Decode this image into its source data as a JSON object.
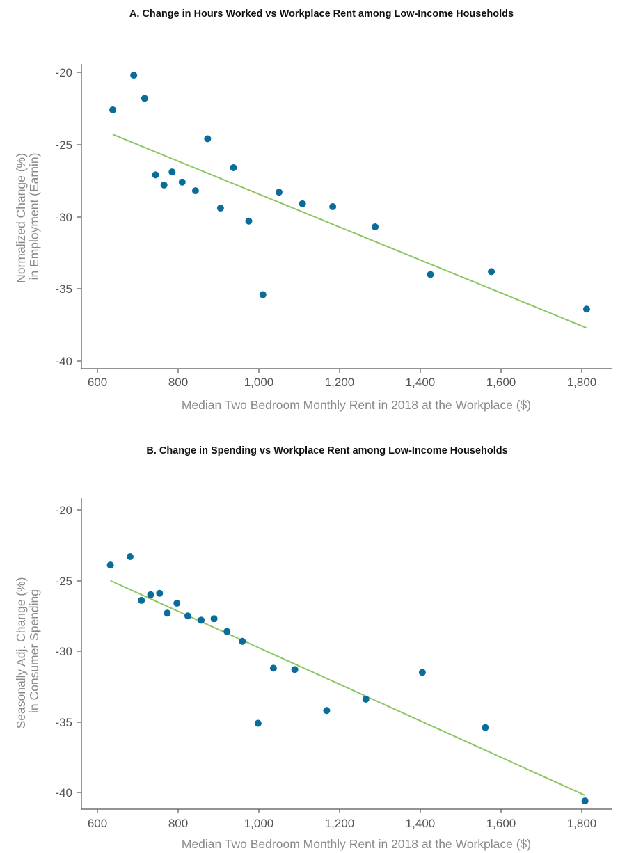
{
  "colors": {
    "points": "#0b6b99",
    "fit_line": "#8cc665",
    "axis": "#555555",
    "axis_label": "#8a8a8a"
  },
  "chart_data": [
    {
      "type": "scatter",
      "title": "A. Change in Hours Worked vs Workplace Rent among Low-Income Households",
      "xlabel": "Median Two Bedroom Monthly Rent in 2018 at the Workplace ($)",
      "ylabel_lines": [
        "Normalized Change (%)",
        "in Employment (Earnin)"
      ],
      "xlim": [
        550,
        1880
      ],
      "ylim": [
        -41,
        -19
      ],
      "xticks": [
        600,
        800,
        1000,
        1200,
        1400,
        1600,
        1800
      ],
      "xtick_labels": [
        "600",
        "800",
        "1,000",
        "1,200",
        "1,400",
        "1,600",
        "1,800"
      ],
      "yticks": [
        -20,
        -25,
        -30,
        -35,
        -40
      ],
      "ytick_labels": [
        "-20",
        "-25",
        "-30",
        "-35",
        "-40"
      ],
      "grid": false,
      "points": [
        {
          "x": 638,
          "y": -22.6
        },
        {
          "x": 690,
          "y": -20.2
        },
        {
          "x": 717,
          "y": -21.8
        },
        {
          "x": 744,
          "y": -27.1
        },
        {
          "x": 765,
          "y": -27.8
        },
        {
          "x": 785,
          "y": -26.9
        },
        {
          "x": 810,
          "y": -27.6
        },
        {
          "x": 843,
          "y": -28.2
        },
        {
          "x": 873,
          "y": -24.6
        },
        {
          "x": 905,
          "y": -29.4
        },
        {
          "x": 937,
          "y": -26.6
        },
        {
          "x": 975,
          "y": -30.3
        },
        {
          "x": 1010,
          "y": -35.4
        },
        {
          "x": 1050,
          "y": -28.3
        },
        {
          "x": 1108,
          "y": -29.1
        },
        {
          "x": 1183,
          "y": -29.3
        },
        {
          "x": 1288,
          "y": -30.7
        },
        {
          "x": 1425,
          "y": -34.0
        },
        {
          "x": 1576,
          "y": -33.8
        },
        {
          "x": 1812,
          "y": -36.4
        }
      ],
      "fit": {
        "x": [
          638,
          1812
        ],
        "y": [
          -24.3,
          -37.7
        ]
      }
    },
    {
      "type": "scatter",
      "title": "B. Change in Spending vs Workplace Rent among Low-Income Households",
      "xlabel": "Median Two Bedroom Monthly Rent in 2018 at the Workplace ($)",
      "ylabel_lines": [
        "Seasonally Adj. Change (%)",
        "in Consumer Spending"
      ],
      "xlim": [
        550,
        1880
      ],
      "ylim": [
        -41.2,
        -19.2
      ],
      "xticks": [
        600,
        800,
        1000,
        1200,
        1400,
        1600,
        1800
      ],
      "xtick_labels": [
        "600",
        "800",
        "1,000",
        "1,200",
        "1,400",
        "1,600",
        "1,800"
      ],
      "yticks": [
        -20,
        -25,
        -30,
        -35,
        -40
      ],
      "ytick_labels": [
        "-20",
        "-25",
        "-30",
        "-35",
        "-40"
      ],
      "grid": false,
      "points": [
        {
          "x": 632,
          "y": -23.9
        },
        {
          "x": 681,
          "y": -23.3
        },
        {
          "x": 709,
          "y": -26.4
        },
        {
          "x": 732,
          "y": -26.0
        },
        {
          "x": 754,
          "y": -25.9
        },
        {
          "x": 773,
          "y": -27.3
        },
        {
          "x": 797,
          "y": -26.6
        },
        {
          "x": 824,
          "y": -27.5
        },
        {
          "x": 857,
          "y": -27.8
        },
        {
          "x": 889,
          "y": -27.7
        },
        {
          "x": 921,
          "y": -28.6
        },
        {
          "x": 959,
          "y": -29.3
        },
        {
          "x": 998,
          "y": -35.1
        },
        {
          "x": 1036,
          "y": -31.2
        },
        {
          "x": 1089,
          "y": -31.3
        },
        {
          "x": 1168,
          "y": -34.2
        },
        {
          "x": 1265,
          "y": -33.4
        },
        {
          "x": 1405,
          "y": -31.5
        },
        {
          "x": 1561,
          "y": -35.4
        },
        {
          "x": 1808,
          "y": -40.6
        }
      ],
      "fit": {
        "x": [
          632,
          1808
        ],
        "y": [
          -25.0,
          -40.2
        ]
      }
    }
  ]
}
